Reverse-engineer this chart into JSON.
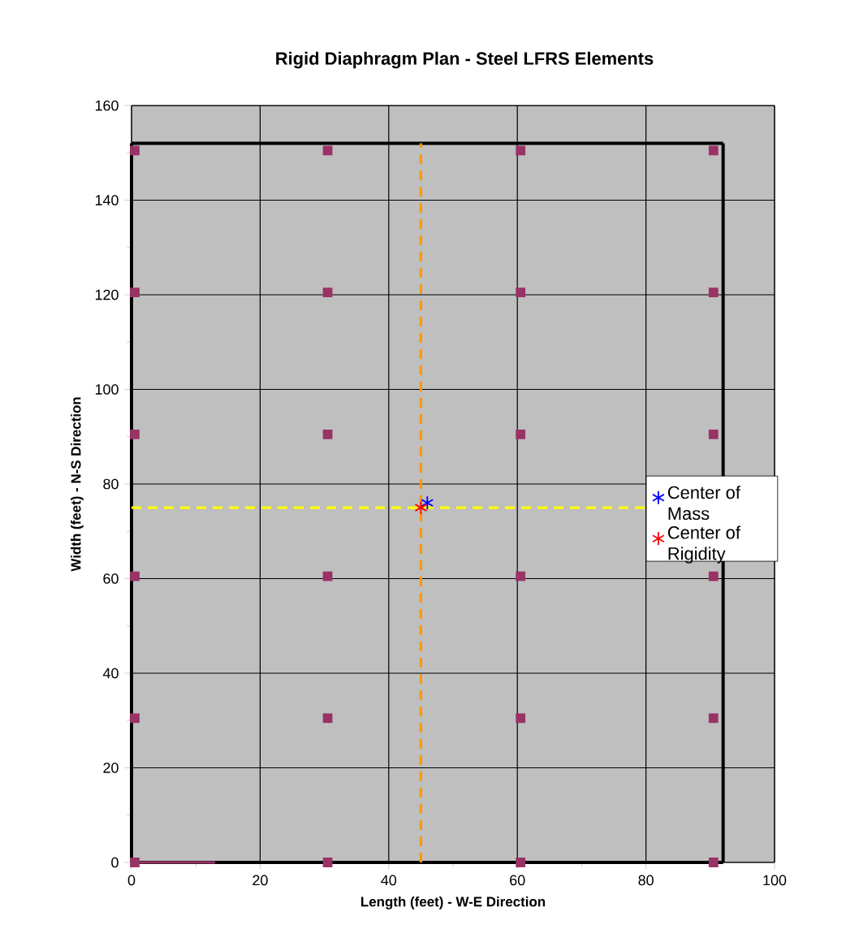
{
  "chart_data": {
    "type": "scatter",
    "title": "Rigid Diaphragm Plan - Steel LFRS Elements",
    "xlabel": "Length (feet) - W-E Direction",
    "ylabel": "Width (feet) - N-S Direction",
    "xlim": [
      0,
      100
    ],
    "xticks": [
      0,
      20,
      40,
      60,
      80,
      100
    ],
    "ylim": [
      0,
      160
    ],
    "yticks": [
      0,
      20,
      40,
      60,
      80,
      100,
      120,
      140,
      160
    ],
    "grid": true,
    "legend": "right",
    "series": [
      {
        "type": "line",
        "color": "#000000",
        "line_style": "solid",
        "marker": "none",
        "x": [
          0,
          0
        ],
        "values": [
          0,
          152
        ]
      },
      {
        "type": "line",
        "color": "#000000",
        "line_style": "solid",
        "marker": "none",
        "x": [
          0,
          92
        ],
        "values": [
          152,
          152
        ]
      },
      {
        "type": "line",
        "color": "#000000",
        "line_style": "solid",
        "marker": "none",
        "x": [
          92,
          92
        ],
        "values": [
          152,
          0
        ]
      },
      {
        "type": "line",
        "color": "#000000",
        "line_style": "solid",
        "marker": "none",
        "x": [
          0,
          92
        ],
        "values": [
          0,
          0
        ]
      },
      {
        "type": "line",
        "color": "#993366",
        "line_style": "solid",
        "marker": "none",
        "x": [
          0,
          13
        ],
        "values": [
          0,
          0
        ]
      },
      {
        "type": "line",
        "color": "#ff9900",
        "line_style": "dashed",
        "marker": "none",
        "x": [
          45,
          45
        ],
        "values": [
          0,
          152
        ]
      },
      {
        "type": "line",
        "color": "#ffff00",
        "line_style": "dashed",
        "marker": "none",
        "x": [
          0,
          80
        ],
        "values": [
          75,
          75
        ]
      },
      {
        "type": "scatter",
        "color": "#993366",
        "marker": "square",
        "x": [
          0.5,
          30.5,
          60.5,
          90.5,
          0.5,
          30.5,
          60.5,
          90.5,
          0.5,
          30.5,
          60.5,
          90.5,
          0.5,
          30.5,
          60.5,
          90.5,
          0.5,
          30.5,
          60.5,
          90.5,
          0.5,
          30.5,
          60.5,
          90.5
        ],
        "values": [
          150.5,
          150.5,
          150.5,
          150.5,
          120.5,
          120.5,
          120.5,
          120.5,
          90.5,
          90.5,
          90.5,
          90.5,
          60.5,
          60.5,
          60.5,
          60.5,
          30.5,
          30.5,
          30.5,
          30.5,
          0,
          0,
          0,
          0
        ]
      },
      {
        "type": "scatter",
        "name": "Center of Mass",
        "color": "#0000ff",
        "marker": "cross",
        "x": [
          46
        ],
        "values": [
          76
        ]
      },
      {
        "type": "scatter",
        "name": "Center of Rigidity",
        "color": "#ff0000",
        "marker": "cross",
        "x": [
          45
        ],
        "values": [
          75
        ]
      }
    ]
  }
}
